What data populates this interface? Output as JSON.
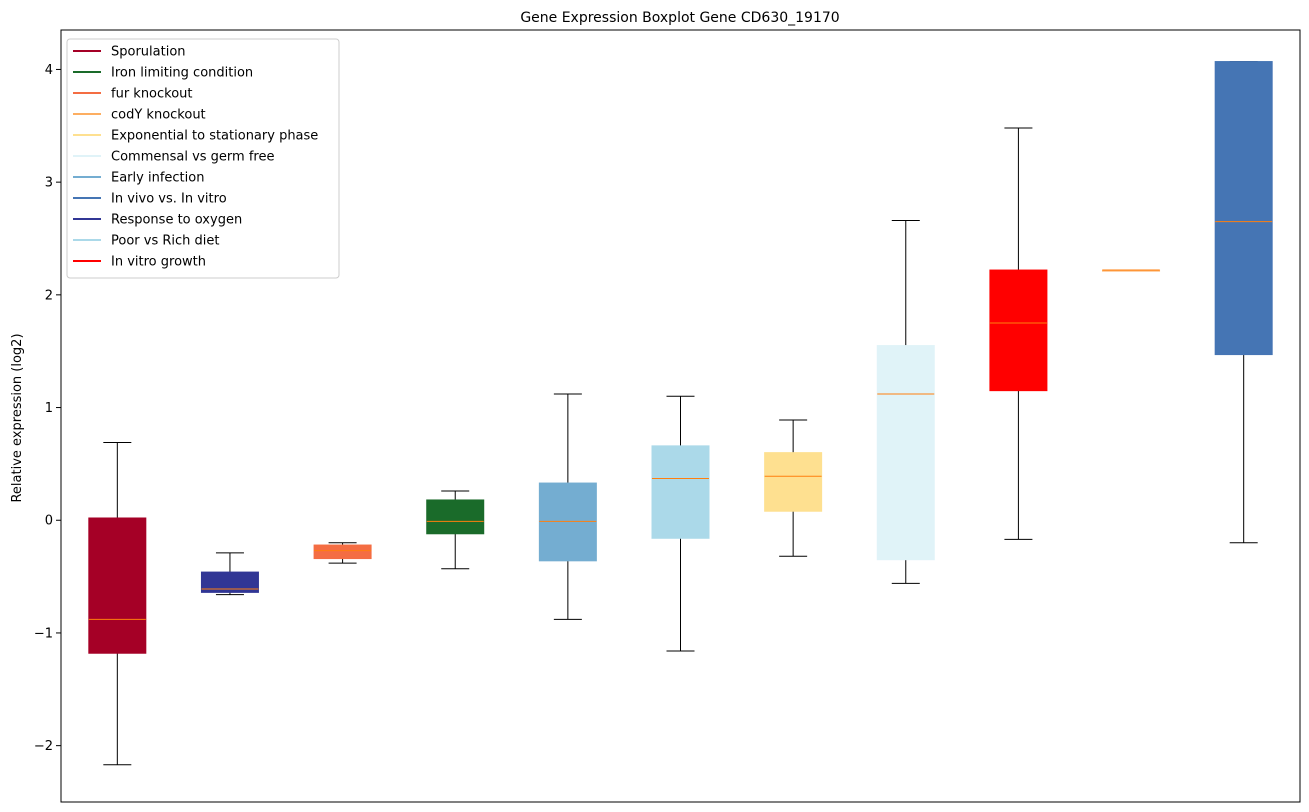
{
  "chart_data": {
    "type": "boxplot",
    "title": "Gene Expression Boxplot Gene CD630_19170",
    "ylabel": "Relative expression (log2)",
    "xlabel": "",
    "ylim": [
      -2.5,
      4.35
    ],
    "yticks": [
      -2,
      -1,
      0,
      1,
      2,
      3,
      4
    ],
    "ytick_labels": [
      "−2",
      "−1",
      "0",
      "1",
      "2",
      "3",
      "4"
    ],
    "median_color": "#ff7f0e",
    "legend": [
      {
        "label": "Sporulation",
        "color": "#a50026"
      },
      {
        "label": "Iron limiting condition",
        "color": "#1a6b2a"
      },
      {
        "label": "fur knockout",
        "color": "#f46d43"
      },
      {
        "label": "codY knockout",
        "color": "#fdae61"
      },
      {
        "label": "Exponential to stationary phase",
        "color": "#fee090"
      },
      {
        "label": "Commensal vs germ free",
        "color": "#e0f3f8"
      },
      {
        "label": "Early infection",
        "color": "#74add1"
      },
      {
        "label": "In vivo vs. In vitro",
        "color": "#4575b4"
      },
      {
        "label": "Response to oxygen",
        "color": "#313695"
      },
      {
        "label": "Poor vs Rich diet",
        "color": "#abd9e9"
      },
      {
        "label": "In vitro growth",
        "color": "#ff0000"
      }
    ],
    "boxes": [
      {
        "condition": "Sporulation",
        "color": "#a50026",
        "whisker_low": -2.17,
        "q1": -1.18,
        "median": -0.88,
        "q3": 0.02,
        "whisker_high": 0.69
      },
      {
        "condition": "Response to oxygen",
        "color": "#313695",
        "whisker_low": -0.66,
        "q1": -0.64,
        "median": -0.61,
        "q3": -0.46,
        "whisker_high": -0.29
      },
      {
        "condition": "fur knockout",
        "color": "#f46d43",
        "whisker_low": -0.38,
        "q1": -0.34,
        "median": -0.27,
        "q3": -0.22,
        "whisker_high": -0.2
      },
      {
        "condition": "Iron limiting condition",
        "color": "#1a6b2a",
        "whisker_low": -0.43,
        "q1": -0.12,
        "median": -0.01,
        "q3": 0.18,
        "whisker_high": 0.26
      },
      {
        "condition": "Early infection",
        "color": "#74add1",
        "whisker_low": -0.88,
        "q1": -0.36,
        "median": -0.01,
        "q3": 0.33,
        "whisker_high": 1.12
      },
      {
        "condition": "Poor vs Rich diet",
        "color": "#abd9e9",
        "whisker_low": -1.16,
        "q1": -0.16,
        "median": 0.37,
        "q3": 0.66,
        "whisker_high": 1.1
      },
      {
        "condition": "Exponential to stationary phase",
        "color": "#fee090",
        "whisker_low": -0.32,
        "q1": 0.08,
        "median": 0.39,
        "q3": 0.6,
        "whisker_high": 0.89
      },
      {
        "condition": "Commensal vs germ free",
        "color": "#e0f3f8",
        "whisker_low": -0.56,
        "q1": -0.35,
        "median": 1.12,
        "q3": 1.55,
        "whisker_high": 2.66
      },
      {
        "condition": "In vitro growth",
        "color": "#ff0000",
        "whisker_low": -0.17,
        "q1": 1.15,
        "median": 1.75,
        "q3": 2.22,
        "whisker_high": 3.48
      },
      {
        "condition": "codY knockout",
        "color": "#fdae61",
        "whisker_low": 2.22,
        "q1": 2.22,
        "median": 2.22,
        "q3": 2.22,
        "whisker_high": 2.22
      },
      {
        "condition": "In vivo vs. In vitro",
        "color": "#4575b4",
        "whisker_low": -0.2,
        "q1": 1.47,
        "median": 2.65,
        "q3": 4.07,
        "whisker_high": 4.07
      }
    ]
  }
}
